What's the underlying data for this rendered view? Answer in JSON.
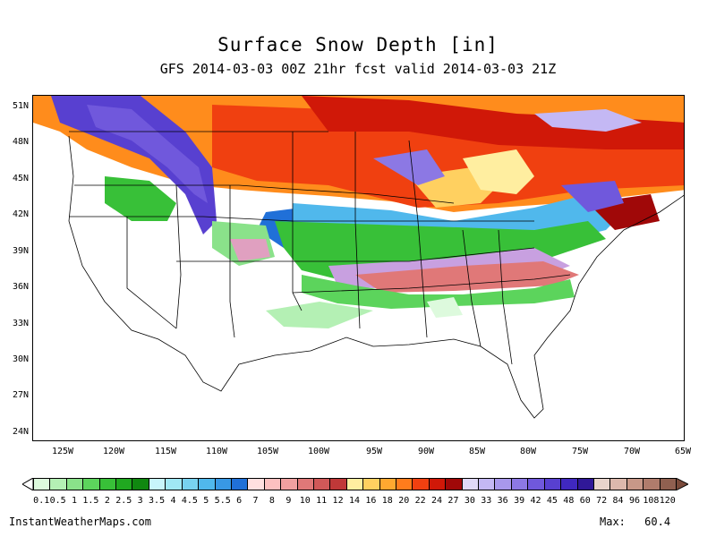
{
  "title": "Surface Snow Depth [in]",
  "subtitle": "GFS 2014-03-03 00Z 21hr fcst valid 2014-03-03 21Z",
  "lat_labels": [
    "51N",
    "48N",
    "45N",
    "42N",
    "39N",
    "36N",
    "33N",
    "30N",
    "27N",
    "24N"
  ],
  "lon_labels": [
    "125W",
    "120W",
    "115W",
    "110W",
    "105W",
    "100W",
    "95W",
    "90W",
    "85W",
    "80W",
    "75W",
    "70W",
    "65W"
  ],
  "colorbar": {
    "labels": [
      "0.1",
      "0.5",
      "1",
      "1.5",
      "2",
      "2.5",
      "3",
      "3.5",
      "4",
      "4.5",
      "5",
      "5.5",
      "6",
      "7",
      "8",
      "9",
      "10",
      "11",
      "12",
      "14",
      "16",
      "18",
      "20",
      "22",
      "24",
      "27",
      "30",
      "33",
      "36",
      "39",
      "42",
      "45",
      "48",
      "60",
      "72",
      "84",
      "96",
      "108",
      "120"
    ],
    "colors": [
      "#ddfadd",
      "#b4f0b4",
      "#8ae28a",
      "#5cd45c",
      "#38c038",
      "#20a820",
      "#108810",
      "#c8f5fb",
      "#a0e8f5",
      "#78d2f0",
      "#50b8ec",
      "#3898e4",
      "#2070d8",
      "#ffe0e0",
      "#fcc0c0",
      "#f0a0a0",
      "#e07878",
      "#d05858",
      "#c03838",
      "#ffeea0",
      "#ffd060",
      "#ffa830",
      "#ff7c1c",
      "#f04010",
      "#d01808",
      "#a00808",
      "#e0d8f8",
      "#c4b8f4",
      "#a898ec",
      "#8c78e4",
      "#7058dc",
      "#5840d0",
      "#4028c0",
      "#301898",
      "#e8d4cc",
      "#dcb8ac",
      "#c89888",
      "#b07c6c",
      "#906050"
    ]
  },
  "footer": {
    "source": "InstantWeatherMaps.com",
    "max_label": "Max:",
    "max_value": "60.4"
  }
}
